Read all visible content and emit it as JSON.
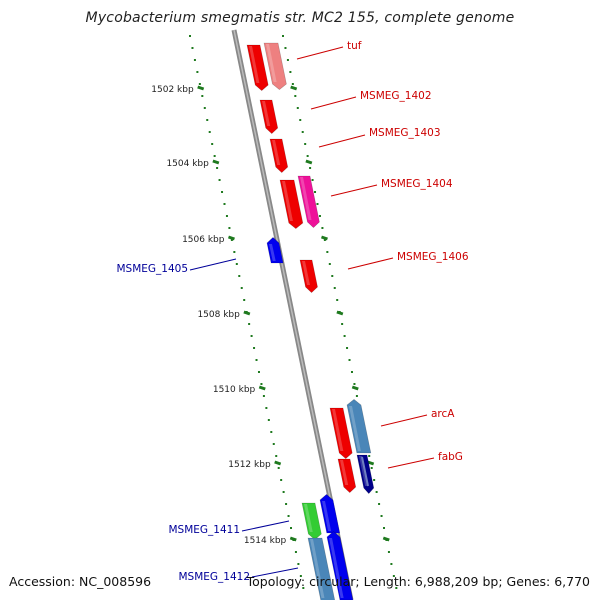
{
  "title": "Mycobacterium smegmatis str. MC2 155, complete genome",
  "footer": {
    "accession": "Accession: NC_008596",
    "topology": "Topology: circular; Length: 6,988,209 bp; Genes: 6,770"
  },
  "colors": {
    "backbone": "#8a8a8a",
    "tick": "#1f7a1f",
    "forward_label": "#cc0000",
    "reverse_label": "#000099"
  },
  "ticks": [
    "1502 kbp",
    "1504 kbp",
    "1506 kbp",
    "1508 kbp",
    "1510 kbp",
    "1512 kbp",
    "1514 kbp"
  ],
  "genes": [
    {
      "label": "tuf",
      "strand": "+",
      "color": "#ee0000",
      "second_color": "#ee8080"
    },
    {
      "label": "MSMEG_1402",
      "strand": "+",
      "color": "#ee0000"
    },
    {
      "label": "MSMEG_1403",
      "strand": "+",
      "color": "#ee0000"
    },
    {
      "label": "MSMEG_1404",
      "strand": "+",
      "color": "#ee0000",
      "second_color": "#ee1199"
    },
    {
      "label": "MSMEG_1405",
      "strand": "-",
      "color": "#0000ee"
    },
    {
      "label": "MSMEG_1406",
      "strand": "+",
      "color": "#ee0000"
    },
    {
      "label": "arcA",
      "strand": "+",
      "color": "#ee0000",
      "second_color": "#4a86b8"
    },
    {
      "label": "fabG",
      "strand": "+",
      "color": "#ee0000",
      "second_color": "#00008b"
    },
    {
      "label": "MSMEG_1411",
      "strand": "-",
      "color": "#33cc33",
      "second_color": "#0000ee"
    },
    {
      "label": "MSMEG_1412",
      "strand": "-",
      "color": "#4a86b8",
      "second_color": "#0000ee"
    }
  ]
}
